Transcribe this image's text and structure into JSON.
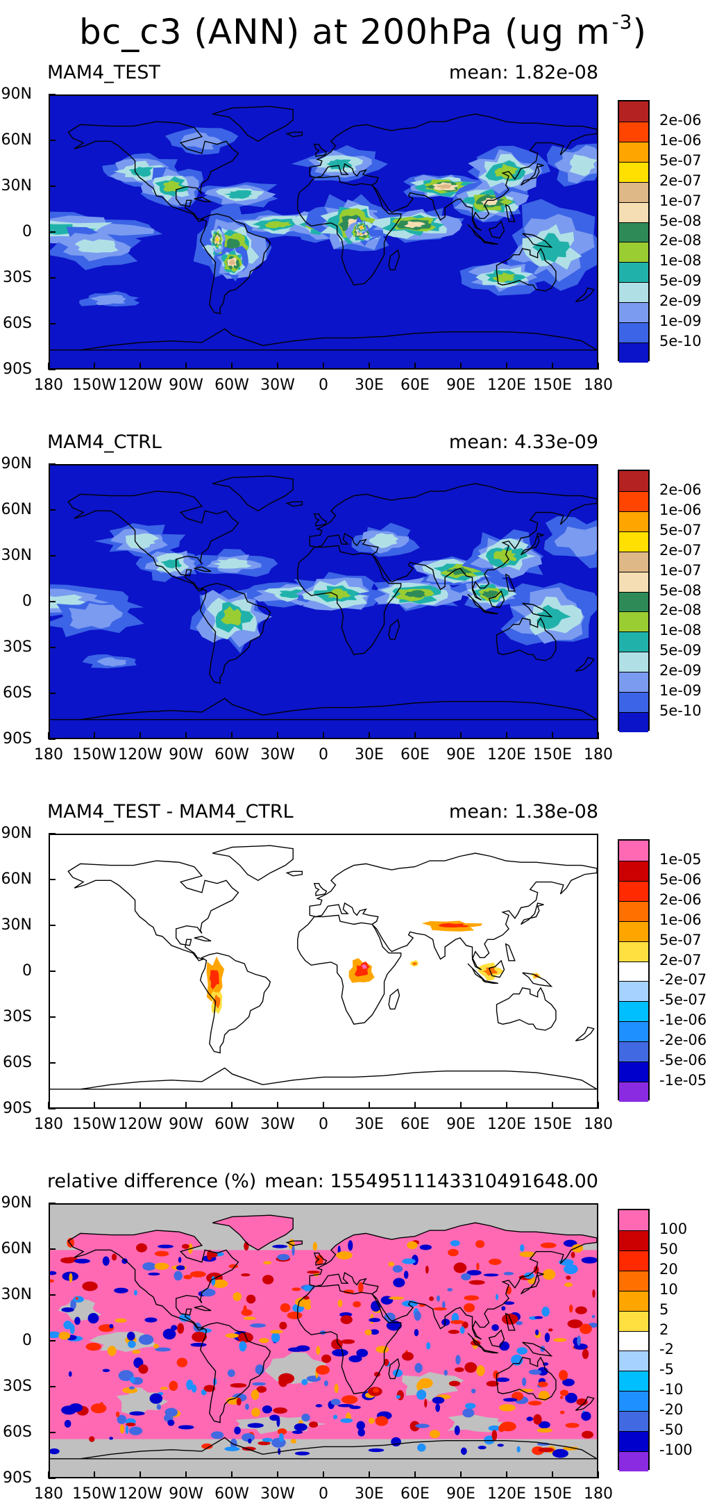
{
  "figure": {
    "title_main": "bc_c3 (ANN) at 200hPa (ug m",
    "title_exp": "-3",
    "title_close": ")"
  },
  "axes": {
    "lat_labels": [
      "90N",
      "60N",
      "30N",
      "0",
      "30S",
      "60S",
      "90S"
    ],
    "lon_labels": [
      "180",
      "150W",
      "120W",
      "90W",
      "60W",
      "30W",
      "0",
      "30E",
      "60E",
      "90E",
      "120E",
      "150E",
      "180"
    ]
  },
  "panels": [
    {
      "label": "MAM4_TEST",
      "mean": "mean: 1.82e-08",
      "background": "#0b14c8",
      "landfill": false,
      "colorbar": {
        "colors": [
          "#b42222",
          "#ff4500",
          "#ffa500",
          "#ffe000",
          "#deb887",
          "#f5deb3",
          "#2e8b57",
          "#9acd32",
          "#20b2aa",
          "#b0e0e6",
          "#7b9bf0",
          "#3c64e6",
          "#0b14c8"
        ],
        "labels": [
          "2e-06",
          "1e-06",
          "5e-07",
          "2e-07",
          "1e-07",
          "5e-08",
          "2e-08",
          "1e-08",
          "5e-09",
          "2e-09",
          "1e-09",
          "5e-10"
        ]
      }
    },
    {
      "label": "MAM4_CTRL",
      "mean": "mean: 4.33e-09",
      "background": "#0b14c8",
      "landfill": false,
      "colorbar": {
        "colors": [
          "#b42222",
          "#ff4500",
          "#ffa500",
          "#ffe000",
          "#deb887",
          "#f5deb3",
          "#2e8b57",
          "#9acd32",
          "#20b2aa",
          "#b0e0e6",
          "#7b9bf0",
          "#3c64e6",
          "#0b14c8"
        ],
        "labels": [
          "2e-06",
          "1e-06",
          "5e-07",
          "2e-07",
          "1e-07",
          "5e-08",
          "2e-08",
          "1e-08",
          "5e-09",
          "2e-09",
          "1e-09",
          "5e-10"
        ]
      }
    },
    {
      "label": "MAM4_TEST - MAM4_CTRL",
      "mean": "mean: 1.38e-08",
      "background": "#ffffff",
      "landfill": false,
      "colorbar": {
        "colors": [
          "#ff69b4",
          "#cc0000",
          "#ff2a00",
          "#ff7000",
          "#ffa500",
          "#ffe040",
          "#ffffff",
          "#a6d2ff",
          "#00bfff",
          "#1e90ff",
          "#4169e1",
          "#0000cd",
          "#8a2be2"
        ],
        "labels": [
          "1e-05",
          "5e-06",
          "2e-06",
          "1e-06",
          "5e-07",
          "2e-07",
          "-2e-07",
          "-5e-07",
          "-1e-06",
          "-2e-06",
          "-5e-06",
          "-1e-05"
        ]
      }
    },
    {
      "label": "relative difference (%)",
      "mean": "mean: 155495111433104916​48.00",
      "background": "#c0c0c0",
      "landfill": false,
      "colorbar": {
        "colors": [
          "#ff69b4",
          "#cc0000",
          "#ff2a00",
          "#ff7000",
          "#ffa500",
          "#ffe040",
          "#ffffff",
          "#a6d2ff",
          "#00bfff",
          "#1e90ff",
          "#4169e1",
          "#0000cd",
          "#8a2be2"
        ],
        "labels": [
          "100",
          "50",
          "20",
          "10",
          "5",
          "2",
          "-2",
          "-5",
          "-10",
          "-20",
          "-50",
          "-100"
        ]
      }
    }
  ],
  "chart_data": [
    {
      "type": "heatmap",
      "title": "MAM4_TEST",
      "mean": "1.82e-08",
      "xlim": [
        -180,
        180
      ],
      "ylim": [
        -90,
        90
      ],
      "x_ticks": [
        "180",
        "150W",
        "120W",
        "90W",
        "60W",
        "30W",
        "0",
        "30E",
        "60E",
        "90E",
        "120E",
        "150E",
        "180"
      ],
      "y_ticks": [
        "90N",
        "60N",
        "30N",
        "0",
        "30S",
        "60S",
        "90S"
      ],
      "levels": [
        "5e-10",
        "1e-09",
        "2e-09",
        "5e-09",
        "1e-08",
        "2e-08",
        "5e-08",
        "1e-07",
        "2e-07",
        "5e-07",
        "1e-06",
        "2e-06"
      ]
    },
    {
      "type": "heatmap",
      "title": "MAM4_CTRL",
      "mean": "4.33e-09",
      "xlim": [
        -180,
        180
      ],
      "ylim": [
        -90,
        90
      ],
      "levels": [
        "5e-10",
        "1e-09",
        "2e-09",
        "5e-09",
        "1e-08",
        "2e-08",
        "5e-08",
        "1e-07",
        "2e-07",
        "5e-07",
        "1e-06",
        "2e-06"
      ]
    },
    {
      "type": "heatmap",
      "title": "MAM4_TEST - MAM4_CTRL",
      "mean": "1.38e-08",
      "xlim": [
        -180,
        180
      ],
      "ylim": [
        -90,
        90
      ],
      "levels": [
        "-1e-05",
        "-5e-06",
        "-2e-06",
        "-1e-06",
        "-5e-07",
        "-2e-07",
        "2e-07",
        "5e-07",
        "1e-06",
        "2e-06",
        "5e-06",
        "1e-05"
      ]
    },
    {
      "type": "heatmap",
      "title": "relative difference (%)",
      "mean": "15549511143310491648.00",
      "xlim": [
        -180,
        180
      ],
      "ylim": [
        -90,
        90
      ],
      "levels": [
        "-100",
        "-50",
        "-20",
        "-10",
        "-5",
        "-2",
        "2",
        "5",
        "10",
        "20",
        "50",
        "100"
      ]
    }
  ]
}
